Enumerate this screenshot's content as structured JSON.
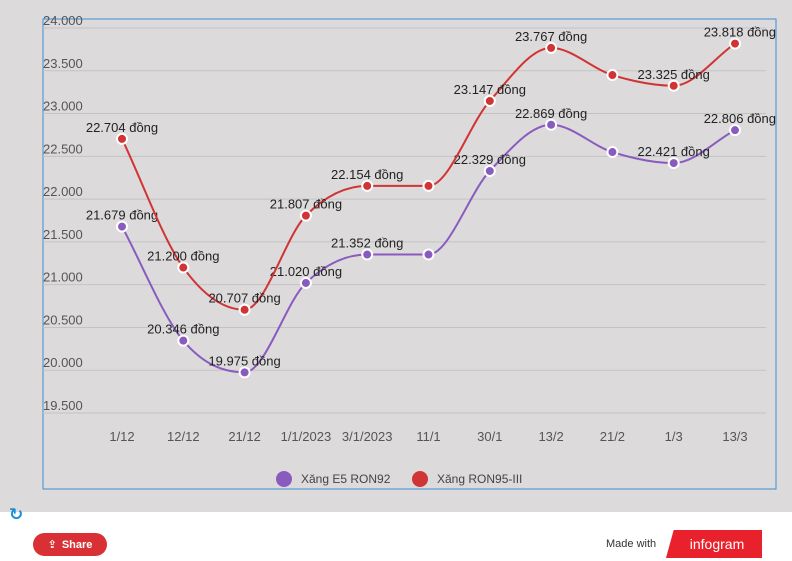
{
  "chart_data": {
    "type": "line",
    "categories": [
      "1/12",
      "12/12",
      "21/12",
      "1/1/2023",
      "3/1/2023",
      "11/1",
      "30/1",
      "13/2",
      "21/2",
      "1/3",
      "13/3"
    ],
    "y_ticks": [
      "24.000",
      "23.500",
      "23.000",
      "22.500",
      "22.000",
      "21.500",
      "21.000",
      "20.500",
      "20.000",
      "19.500"
    ],
    "ylim": [
      19500,
      24000
    ],
    "grid": true,
    "legend_position": "bottom",
    "series": [
      {
        "name": "Xăng E5 RON92",
        "color": "#8a5bbf",
        "values": [
          21679,
          20346,
          19975,
          21020,
          21352,
          21352,
          22329,
          22869,
          22550,
          22421,
          22806
        ],
        "labels": [
          "21.679 đồng",
          "20.346 đồng",
          "19.975 đồng",
          "21.020 đồng",
          "21.352 đồng",
          "",
          "22.329 đồng",
          "22.869 đồng",
          "",
          "22.421 đồng",
          "22.806 đồng"
        ]
      },
      {
        "name": "Xăng RON95-III",
        "color": "#d03434",
        "values": [
          22704,
          21200,
          20707,
          21807,
          22154,
          22154,
          23147,
          23767,
          23450,
          23325,
          23818
        ],
        "labels": [
          "22.704 đồng",
          "21.200 đồng",
          "20.707 đồng",
          "21.807 đồng",
          "22.154 đồng",
          "",
          "23.147 đồng",
          "23.767 đồng",
          "",
          "23.325 đồng",
          "23.818 đồng"
        ]
      }
    ]
  },
  "footer": {
    "reload_icon": "reload-icon",
    "share_label": "Share",
    "share_icon": "share-icon",
    "made_with": "Made with",
    "brand": "infogram"
  }
}
